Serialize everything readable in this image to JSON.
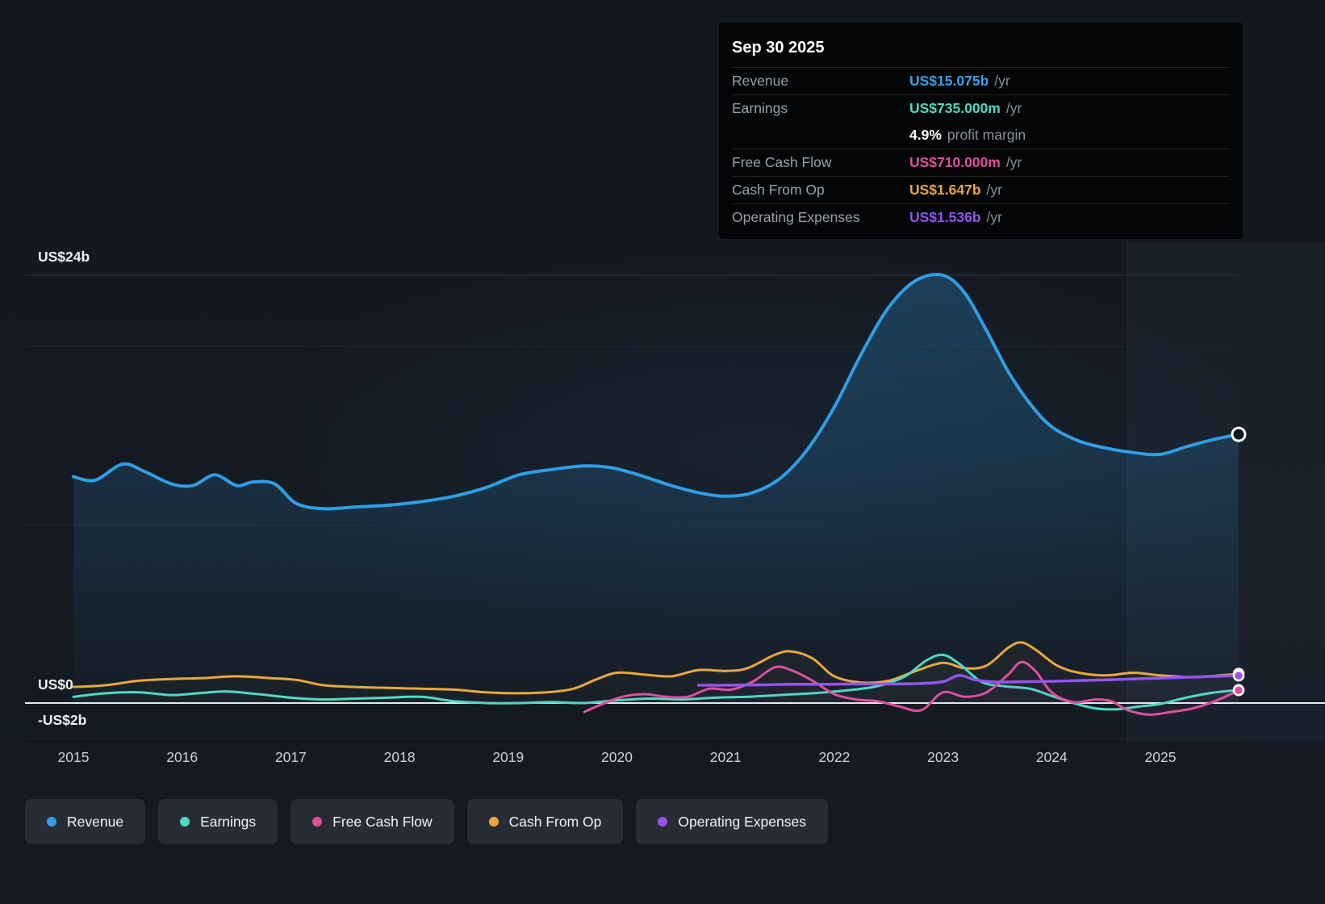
{
  "tooltip": {
    "date": "Sep 30 2025",
    "rows": [
      {
        "id": "revenue",
        "label": "Revenue",
        "value": "US$15.075b",
        "suffix": "/yr",
        "color": "#3aa0e8",
        "subrow": false
      },
      {
        "id": "earnings",
        "label": "Earnings",
        "value": "US$735.000m",
        "suffix": "/yr",
        "color": "#4fd9c2",
        "subrow": false
      },
      {
        "id": "profit-margin",
        "label": "",
        "value": "4.9%",
        "suffix": "profit margin",
        "color": "#ffffff",
        "subrow": true
      },
      {
        "id": "free-cash-flow",
        "label": "Free Cash Flow",
        "value": "US$710.000m",
        "suffix": "/yr",
        "color": "#dd4f9f",
        "subrow": false
      },
      {
        "id": "cash-from-op",
        "label": "Cash From Op",
        "value": "US$1.647b",
        "suffix": "/yr",
        "color": "#e8a83e",
        "subrow": false
      },
      {
        "id": "operating-expenses",
        "label": "Operating Expenses",
        "value": "US$1.536b",
        "suffix": "/yr",
        "color": "#9455ec",
        "subrow": false
      }
    ]
  },
  "legend": [
    {
      "id": "revenue",
      "label": "Revenue",
      "color": "#2f9ee3"
    },
    {
      "id": "earnings",
      "label": "Earnings",
      "color": "#4fd9c2"
    },
    {
      "id": "free-cash-flow",
      "label": "Free Cash Flow",
      "color": "#dd4f9f"
    },
    {
      "id": "cash-from-op",
      "label": "Cash From Op",
      "color": "#e8a83e"
    },
    {
      "id": "operating-expenses",
      "label": "Operating Expenses",
      "color": "#9455ec"
    }
  ],
  "chart_data": {
    "type": "line",
    "x_unit": "year",
    "y_unit": "US$ billions",
    "x_domain": [
      2015,
      2025.72
    ],
    "highlight_from_year": 2024.7,
    "x_ticks": [
      {
        "value": 2015,
        "label": "2015"
      },
      {
        "value": 2016,
        "label": "2016"
      },
      {
        "value": 2017,
        "label": "2017"
      },
      {
        "value": 2018,
        "label": "2018"
      },
      {
        "value": 2019,
        "label": "2019"
      },
      {
        "value": 2020,
        "label": "2020"
      },
      {
        "value": 2021,
        "label": "2021"
      },
      {
        "value": 2022,
        "label": "2022"
      },
      {
        "value": 2023,
        "label": "2023"
      },
      {
        "value": 2024,
        "label": "2024"
      },
      {
        "value": 2025,
        "label": "2025"
      }
    ],
    "y_gridlines": [
      {
        "value": 24,
        "label": "US$24b",
        "style": "major"
      },
      {
        "value": 20,
        "label": null,
        "style": "minor"
      },
      {
        "value": 10,
        "label": null,
        "style": "minor"
      },
      {
        "value": 0,
        "label": "US$0",
        "style": "zero"
      },
      {
        "value": -2,
        "label": "-US$2b",
        "style": "minor"
      }
    ],
    "series": [
      {
        "id": "revenue",
        "name": "Revenue",
        "color": "#2f9ee3",
        "width": 4,
        "fill_top": 0.3,
        "points": [
          [
            2015.0,
            12.7
          ],
          [
            2015.2,
            12.5
          ],
          [
            2015.45,
            13.4
          ],
          [
            2015.65,
            13.0
          ],
          [
            2015.9,
            12.3
          ],
          [
            2016.1,
            12.2
          ],
          [
            2016.3,
            12.8
          ],
          [
            2016.5,
            12.2
          ],
          [
            2016.65,
            12.4
          ],
          [
            2016.85,
            12.3
          ],
          [
            2017.05,
            11.2
          ],
          [
            2017.3,
            10.9
          ],
          [
            2017.6,
            11.0
          ],
          [
            2017.9,
            11.1
          ],
          [
            2018.2,
            11.3
          ],
          [
            2018.5,
            11.6
          ],
          [
            2018.8,
            12.1
          ],
          [
            2019.1,
            12.8
          ],
          [
            2019.4,
            13.1
          ],
          [
            2019.7,
            13.3
          ],
          [
            2019.95,
            13.2
          ],
          [
            2020.2,
            12.8
          ],
          [
            2020.5,
            12.2
          ],
          [
            2020.75,
            11.8
          ],
          [
            2021.0,
            11.6
          ],
          [
            2021.25,
            11.8
          ],
          [
            2021.5,
            12.6
          ],
          [
            2021.75,
            14.2
          ],
          [
            2022.0,
            16.6
          ],
          [
            2022.25,
            19.6
          ],
          [
            2022.5,
            22.2
          ],
          [
            2022.75,
            23.7
          ],
          [
            2023.0,
            24.0
          ],
          [
            2023.2,
            23.0
          ],
          [
            2023.4,
            20.9
          ],
          [
            2023.6,
            18.6
          ],
          [
            2023.8,
            16.8
          ],
          [
            2024.0,
            15.5
          ],
          [
            2024.25,
            14.7
          ],
          [
            2024.5,
            14.3
          ],
          [
            2024.75,
            14.05
          ],
          [
            2025.0,
            13.95
          ],
          [
            2025.25,
            14.4
          ],
          [
            2025.5,
            14.8
          ],
          [
            2025.72,
            15.075
          ]
        ]
      },
      {
        "id": "cash-from-op",
        "name": "Cash From Op",
        "color": "#e8a83e",
        "width": 3,
        "fill_top": 0.2,
        "points": [
          [
            2015.0,
            0.9
          ],
          [
            2015.3,
            1.0
          ],
          [
            2015.6,
            1.25
          ],
          [
            2015.9,
            1.35
          ],
          [
            2016.2,
            1.4
          ],
          [
            2016.5,
            1.5
          ],
          [
            2016.8,
            1.4
          ],
          [
            2017.05,
            1.3
          ],
          [
            2017.3,
            1.0
          ],
          [
            2017.6,
            0.9
          ],
          [
            2017.9,
            0.85
          ],
          [
            2018.2,
            0.8
          ],
          [
            2018.5,
            0.75
          ],
          [
            2018.8,
            0.6
          ],
          [
            2019.05,
            0.55
          ],
          [
            2019.35,
            0.6
          ],
          [
            2019.6,
            0.8
          ],
          [
            2019.8,
            1.3
          ],
          [
            2020.0,
            1.7
          ],
          [
            2020.25,
            1.6
          ],
          [
            2020.5,
            1.5
          ],
          [
            2020.75,
            1.85
          ],
          [
            2021.0,
            1.8
          ],
          [
            2021.2,
            1.95
          ],
          [
            2021.45,
            2.7
          ],
          [
            2021.6,
            2.9
          ],
          [
            2021.8,
            2.5
          ],
          [
            2022.0,
            1.5
          ],
          [
            2022.25,
            1.15
          ],
          [
            2022.5,
            1.25
          ],
          [
            2022.75,
            1.8
          ],
          [
            2023.0,
            2.25
          ],
          [
            2023.2,
            1.95
          ],
          [
            2023.4,
            2.1
          ],
          [
            2023.6,
            3.1
          ],
          [
            2023.72,
            3.4
          ],
          [
            2023.85,
            3.0
          ],
          [
            2024.05,
            2.1
          ],
          [
            2024.25,
            1.7
          ],
          [
            2024.5,
            1.55
          ],
          [
            2024.75,
            1.7
          ],
          [
            2025.0,
            1.55
          ],
          [
            2025.3,
            1.45
          ],
          [
            2025.55,
            1.55
          ],
          [
            2025.72,
            1.647
          ]
        ]
      },
      {
        "id": "earnings",
        "name": "Earnings",
        "color": "#4fd9c2",
        "width": 3,
        "fill_top": 0.16,
        "points": [
          [
            2015.0,
            0.35
          ],
          [
            2015.3,
            0.55
          ],
          [
            2015.6,
            0.6
          ],
          [
            2015.9,
            0.45
          ],
          [
            2016.15,
            0.55
          ],
          [
            2016.4,
            0.65
          ],
          [
            2016.7,
            0.5
          ],
          [
            2017.0,
            0.3
          ],
          [
            2017.3,
            0.2
          ],
          [
            2017.6,
            0.25
          ],
          [
            2017.9,
            0.3
          ],
          [
            2018.2,
            0.35
          ],
          [
            2018.5,
            0.1
          ],
          [
            2018.8,
            0.0
          ],
          [
            2019.1,
            0.0
          ],
          [
            2019.4,
            0.05
          ],
          [
            2019.7,
            0.0
          ],
          [
            2020.0,
            0.15
          ],
          [
            2020.3,
            0.25
          ],
          [
            2020.6,
            0.2
          ],
          [
            2020.9,
            0.3
          ],
          [
            2021.2,
            0.35
          ],
          [
            2021.5,
            0.45
          ],
          [
            2021.8,
            0.55
          ],
          [
            2022.1,
            0.7
          ],
          [
            2022.4,
            0.95
          ],
          [
            2022.65,
            1.5
          ],
          [
            2022.85,
            2.4
          ],
          [
            2023.0,
            2.7
          ],
          [
            2023.15,
            2.2
          ],
          [
            2023.35,
            1.2
          ],
          [
            2023.55,
            0.95
          ],
          [
            2023.8,
            0.8
          ],
          [
            2024.0,
            0.4
          ],
          [
            2024.2,
            0.0
          ],
          [
            2024.4,
            -0.3
          ],
          [
            2024.6,
            -0.35
          ],
          [
            2024.8,
            -0.2
          ],
          [
            2025.0,
            -0.05
          ],
          [
            2025.2,
            0.25
          ],
          [
            2025.45,
            0.55
          ],
          [
            2025.72,
            0.735
          ]
        ]
      },
      {
        "id": "free-cash-flow",
        "name": "Free Cash Flow",
        "color": "#dd4f9f",
        "width": 3,
        "fill_top": 0.1,
        "points": [
          [
            2019.7,
            -0.5
          ],
          [
            2019.85,
            -0.1
          ],
          [
            2020.05,
            0.35
          ],
          [
            2020.25,
            0.5
          ],
          [
            2020.45,
            0.35
          ],
          [
            2020.65,
            0.35
          ],
          [
            2020.85,
            0.8
          ],
          [
            2021.05,
            0.75
          ],
          [
            2021.25,
            1.2
          ],
          [
            2021.45,
            2.0
          ],
          [
            2021.6,
            1.85
          ],
          [
            2021.8,
            1.25
          ],
          [
            2022.0,
            0.5
          ],
          [
            2022.2,
            0.2
          ],
          [
            2022.4,
            0.1
          ],
          [
            2022.6,
            -0.2
          ],
          [
            2022.8,
            -0.4
          ],
          [
            2023.0,
            0.6
          ],
          [
            2023.2,
            0.35
          ],
          [
            2023.4,
            0.6
          ],
          [
            2023.6,
            1.6
          ],
          [
            2023.72,
            2.3
          ],
          [
            2023.85,
            1.8
          ],
          [
            2024.0,
            0.6
          ],
          [
            2024.2,
            0.05
          ],
          [
            2024.4,
            0.2
          ],
          [
            2024.55,
            0.1
          ],
          [
            2024.7,
            -0.4
          ],
          [
            2024.9,
            -0.65
          ],
          [
            2025.1,
            -0.5
          ],
          [
            2025.3,
            -0.3
          ],
          [
            2025.5,
            0.1
          ],
          [
            2025.72,
            0.71
          ]
        ]
      },
      {
        "id": "operating-expenses",
        "name": "Operating Expenses",
        "color": "#9455ec",
        "width": 3.5,
        "fill_top": 0.25,
        "points": [
          [
            2020.75,
            1.0
          ],
          [
            2021.0,
            1.0
          ],
          [
            2021.3,
            1.02
          ],
          [
            2021.6,
            1.05
          ],
          [
            2021.9,
            1.05
          ],
          [
            2022.2,
            1.07
          ],
          [
            2022.5,
            1.07
          ],
          [
            2022.8,
            1.1
          ],
          [
            2023.0,
            1.2
          ],
          [
            2023.15,
            1.55
          ],
          [
            2023.3,
            1.3
          ],
          [
            2023.5,
            1.18
          ],
          [
            2023.75,
            1.2
          ],
          [
            2024.0,
            1.22
          ],
          [
            2024.3,
            1.27
          ],
          [
            2024.6,
            1.32
          ],
          [
            2024.9,
            1.38
          ],
          [
            2025.2,
            1.44
          ],
          [
            2025.5,
            1.5
          ],
          [
            2025.72,
            1.536
          ]
        ]
      }
    ]
  }
}
